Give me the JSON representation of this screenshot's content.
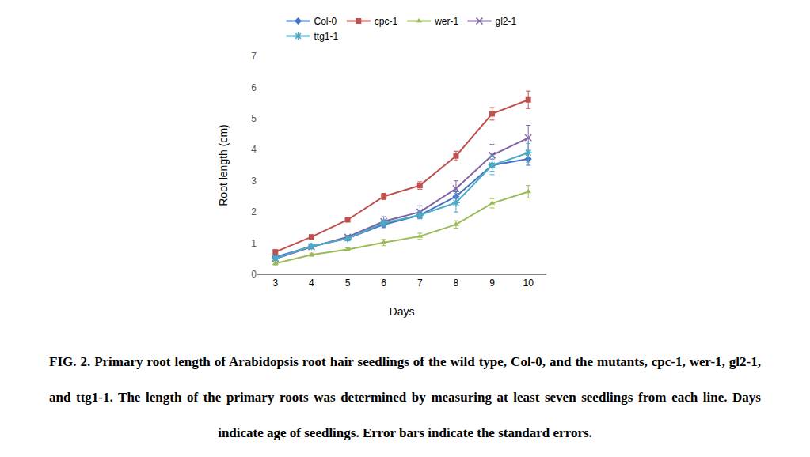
{
  "chart_data": {
    "type": "line",
    "x_label": "Days",
    "y_label": "Root length (cm)",
    "x": [
      3,
      4,
      5,
      6,
      7,
      8,
      9,
      10
    ],
    "xlim": [
      2.5,
      10.5
    ],
    "xticks": [
      3,
      4,
      5,
      6,
      7,
      8,
      9,
      10
    ],
    "ylim": [
      0,
      7
    ],
    "yticks": [
      0,
      1,
      2,
      3,
      4,
      5,
      6,
      7
    ],
    "grid": false,
    "legend": "top",
    "series": [
      {
        "name": "Col-0",
        "color": "#4472c4",
        "marker": "diamond",
        "values": [
          0.55,
          0.9,
          1.15,
          1.6,
          1.9,
          2.5,
          3.5,
          3.7
        ],
        "errors": [
          0.05,
          0.05,
          0.05,
          0.1,
          0.1,
          0.15,
          0.2,
          0.2
        ]
      },
      {
        "name": "cpc-1",
        "color": "#c0504d",
        "marker": "square",
        "values": [
          0.72,
          1.2,
          1.75,
          2.5,
          2.85,
          3.8,
          5.15,
          5.6
        ],
        "errors": [
          0.05,
          0.05,
          0.05,
          0.1,
          0.12,
          0.15,
          0.2,
          0.28
        ]
      },
      {
        "name": "wer-1",
        "color": "#9bbb59",
        "marker": "triangle",
        "values": [
          0.35,
          0.63,
          0.8,
          1.02,
          1.22,
          1.6,
          2.28,
          2.65
        ],
        "errors": [
          0.05,
          0.05,
          0.05,
          0.1,
          0.1,
          0.12,
          0.15,
          0.2
        ]
      },
      {
        "name": "gl2-1",
        "color": "#8064a2",
        "marker": "x",
        "values": [
          0.5,
          0.88,
          1.2,
          1.7,
          2.0,
          2.75,
          3.82,
          4.38
        ],
        "errors": [
          0.05,
          0.05,
          0.05,
          0.15,
          0.2,
          0.25,
          0.35,
          0.4
        ]
      },
      {
        "name": "ttg1-1",
        "color": "#4bacc6",
        "marker": "asterisk",
        "values": [
          0.52,
          0.9,
          1.15,
          1.65,
          1.9,
          2.3,
          3.5,
          3.9
        ],
        "errors": [
          0.05,
          0.05,
          0.05,
          0.1,
          0.12,
          0.3,
          0.3,
          0.3
        ]
      }
    ]
  },
  "caption": "FIG. 2. Primary root length of Arabidopsis root hair seedlings of the wild type, Col-0, and the mutants, cpc-1, wer-1, gl2-1, and ttg1-1. The length of the primary roots was determined by measuring at least seven seedlings from each line. Days indicate age of seedlings. Error bars indicate the standard errors."
}
